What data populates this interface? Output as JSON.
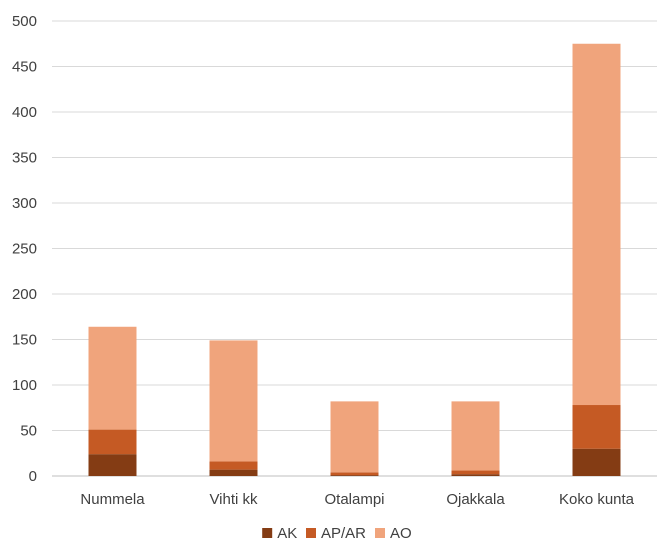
{
  "chart_data": {
    "type": "bar",
    "stacked": true,
    "categories": [
      "Nummela",
      "Vihti kk",
      "Otalampi",
      "Ojakkala",
      "Koko kunta"
    ],
    "series": [
      {
        "name": "AK",
        "color": "#843C14",
        "values": [
          24,
          7,
          1,
          2,
          30
        ]
      },
      {
        "name": "AP/AR",
        "color": "#C55A24",
        "values": [
          27,
          9,
          3,
          4,
          48
        ]
      },
      {
        "name": "AO",
        "color": "#F0A47C",
        "values": [
          113,
          133,
          78,
          76,
          397
        ]
      }
    ],
    "ylim": [
      0,
      500
    ],
    "yticks": [
      0,
      50,
      100,
      150,
      200,
      250,
      300,
      350,
      400,
      450,
      500
    ],
    "grid": true,
    "legend": "bottom"
  }
}
